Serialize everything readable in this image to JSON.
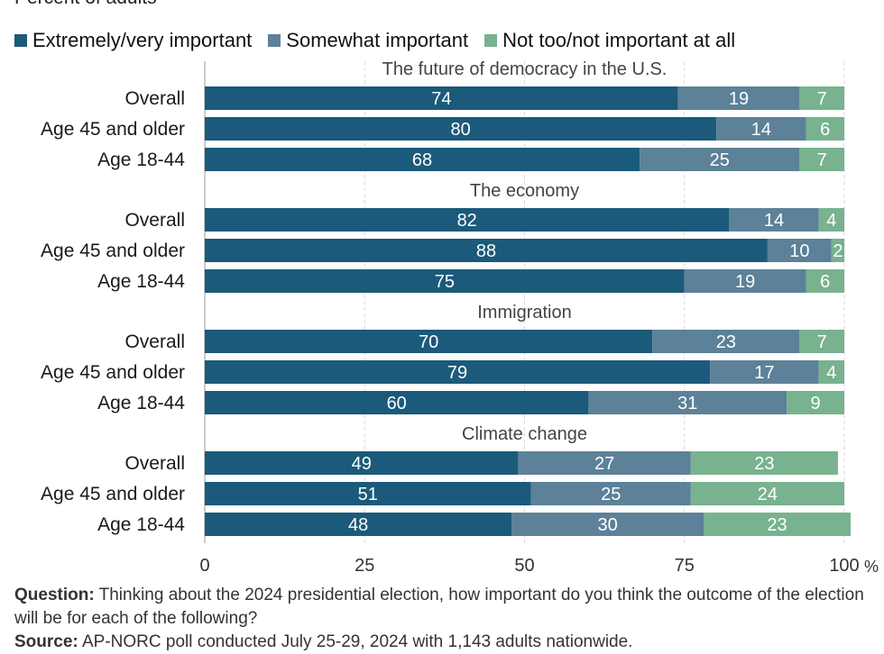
{
  "subtitle": "Percent of adults",
  "legend": [
    {
      "label": "Extremely/very important",
      "color": "#1b5a7a"
    },
    {
      "label": "Somewhat important",
      "color": "#5c8198"
    },
    {
      "label": "Not too/not important at all",
      "color": "#78b28f"
    }
  ],
  "notes": {
    "question_label": "Question:",
    "question_text": "Thinking about the 2024 presidential election, how important do you think the outcome of the election will be for each of the following?",
    "source_label": "Source:",
    "source_text": "AP-NORC poll conducted July 25-29, 2024 with 1,143 adults nationwide."
  },
  "chart_data": {
    "type": "bar",
    "orientation": "horizontal",
    "stacked": true,
    "xlim": [
      0,
      100
    ],
    "xticks": [
      "0",
      "25",
      "50",
      "75",
      "100"
    ],
    "x_unit": "%",
    "grid": true,
    "legend_position": "top",
    "series_names": [
      "Extremely/very important",
      "Somewhat important",
      "Not too/not important at all"
    ],
    "groups": [
      {
        "title": "The future of democracy in the U.S.",
        "rows": [
          {
            "label": "Overall",
            "values": [
              74,
              19,
              7
            ]
          },
          {
            "label": "Age 45 and older",
            "values": [
              80,
              14,
              6
            ]
          },
          {
            "label": "Age 18-44",
            "values": [
              68,
              25,
              7
            ]
          }
        ]
      },
      {
        "title": "The economy",
        "rows": [
          {
            "label": "Overall",
            "values": [
              82,
              14,
              4
            ]
          },
          {
            "label": "Age 45 and older",
            "values": [
              88,
              10,
              2
            ]
          },
          {
            "label": "Age 18-44",
            "values": [
              75,
              19,
              6
            ]
          }
        ]
      },
      {
        "title": "Immigration",
        "rows": [
          {
            "label": "Overall",
            "values": [
              70,
              23,
              7
            ]
          },
          {
            "label": "Age 45 and older",
            "values": [
              79,
              17,
              4
            ]
          },
          {
            "label": "Age 18-44",
            "values": [
              60,
              31,
              9
            ]
          }
        ]
      },
      {
        "title": "Climate change",
        "rows": [
          {
            "label": "Overall",
            "values": [
              49,
              27,
              23
            ]
          },
          {
            "label": "Age 45 and older",
            "values": [
              51,
              25,
              24
            ]
          },
          {
            "label": "Age 18-44",
            "values": [
              48,
              30,
              23
            ]
          }
        ]
      }
    ]
  }
}
